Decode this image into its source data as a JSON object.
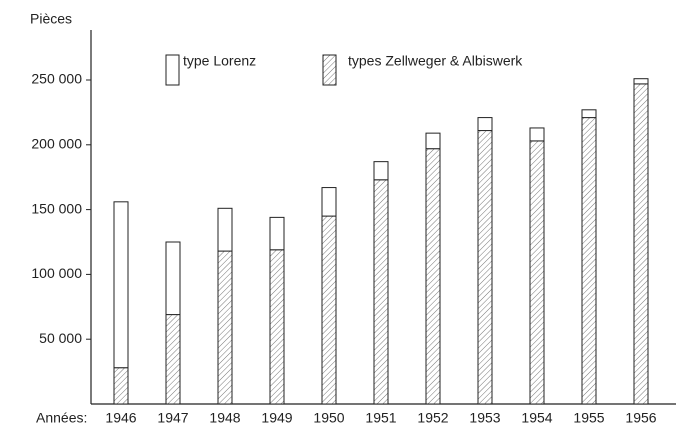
{
  "chart_data": {
    "type": "stacked-bar",
    "y_label": "Pièces",
    "x_label": "Années:",
    "categories": [
      "1946",
      "1947",
      "1948",
      "1949",
      "1950",
      "1951",
      "1952",
      "1953",
      "1954",
      "1955",
      "1956"
    ],
    "series": [
      {
        "name": "type Lorenz",
        "color": "#ffffff",
        "values": [
          128000,
          56000,
          33000,
          25000,
          22000,
          14000,
          12000,
          10000,
          10000,
          6000,
          4000
        ]
      },
      {
        "name": "types Zellweger & Albiswerk",
        "color": "#777777",
        "values": [
          28000,
          69000,
          118000,
          119000,
          145000,
          173000,
          197000,
          211000,
          203000,
          221000,
          247000
        ]
      }
    ],
    "stack_order": "reverse",
    "ylim": [
      0,
      280000
    ],
    "yticks": [
      {
        "value": 50000,
        "label": "50 000"
      },
      {
        "value": 100000,
        "label": "100 000"
      },
      {
        "value": 150000,
        "label": "150 000"
      },
      {
        "value": 200000,
        "label": "200 000"
      },
      {
        "value": 250000,
        "label": "250 000"
      }
    ],
    "grid": false
  }
}
